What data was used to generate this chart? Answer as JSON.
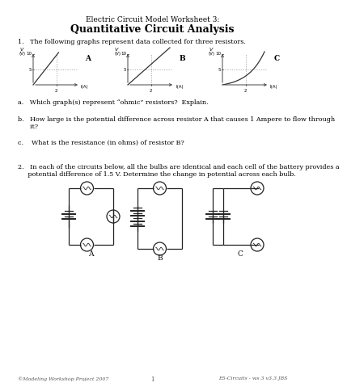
{
  "title_line1": "Electric Circuit Model Worksheet 3:",
  "title_line2": "Quantitative Circuit Analysis",
  "question1": "1.   The following graphs represent data collected for three resistors.",
  "graph_labels": [
    "A",
    "B",
    "C"
  ],
  "qa_text": "a.   Which graph(s) represent “ohmic” resistors?  Explain.",
  "qb_text1": "b.   How large is the potential difference across resistor A that causes 1 Ampere to flow through",
  "qb_text2": "      it?",
  "qc_text": "c.    What is the resistance (in ohms) of resistor B?",
  "question2_1": "2.   In each of the circuits below, all the bulbs are identical and each cell of the battery provides a",
  "question2_2": "     potential difference of 1.5 V. Determine the change in potential across each bulb.",
  "circuit_labels": [
    "A",
    "B",
    "C"
  ],
  "footer_left": "©Modeling Workshop Project 2007",
  "footer_center": "1",
  "footer_right": "E5-Circuits - ws 3 v3.3 JBS",
  "bg_color": "#ffffff",
  "text_color": "#000000"
}
